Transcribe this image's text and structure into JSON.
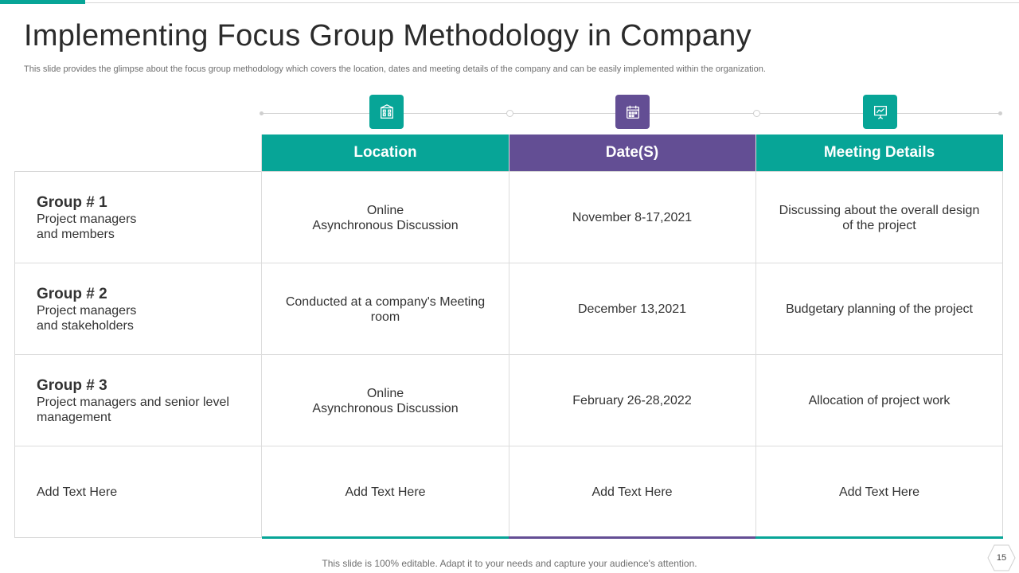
{
  "slide": {
    "title": "Implementing Focus Group Methodology in Company",
    "subtitle": "This slide provides the glimpse about the focus group methodology which covers the location, dates and meeting details of the company and can be easily implemented within the organization.",
    "footer": "This slide is 100% editable. Adapt it to your needs and capture your audience's attention.",
    "page_number": "15"
  },
  "colors": {
    "teal": "#07a597",
    "purple": "#634e94"
  },
  "icons": [
    "building-icon",
    "calendar-icon",
    "presentation-board-icon"
  ],
  "table": {
    "headers": [
      "Location",
      "Date(S)",
      "Meeting Details"
    ],
    "rows": [
      {
        "group": "Group # 1",
        "desc_lines": [
          "Project managers",
          "and members"
        ],
        "location_lines": [
          "Online",
          "Asynchronous  Discussion"
        ],
        "date": "November 8-17,2021",
        "details_lines": [
          "Discussing about the overall design",
          "of the project"
        ]
      },
      {
        "group": "Group # 2",
        "desc_lines": [
          "Project managers",
          "and stakeholders"
        ],
        "location_lines": [
          "Conducted at a company's Meeting",
          "room"
        ],
        "date": "December 13,2021",
        "details_lines": [
          "Budgetary planning  of the project"
        ]
      },
      {
        "group": "Group # 3",
        "desc_lines": [
          "Project managers and senior level",
          "management"
        ],
        "location_lines": [
          "Online",
          "Asynchronous  Discussion"
        ],
        "date": "February 26-28,2022",
        "details_lines": [
          "Allocation of project work"
        ]
      },
      {
        "label": "Add Text Here",
        "location": "Add Text Here",
        "date": "Add Text Here",
        "details": "Add Text Here"
      }
    ]
  }
}
